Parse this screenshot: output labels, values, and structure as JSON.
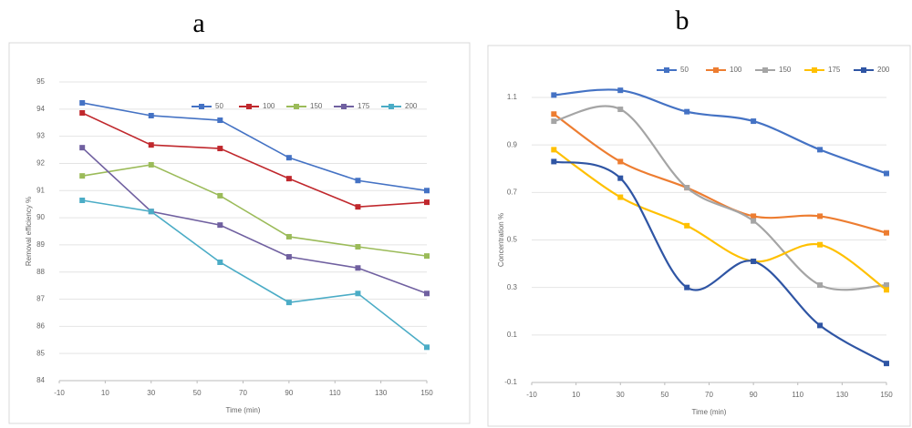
{
  "chart_data": [
    {
      "type": "line",
      "title": "a",
      "x_label": "Time (min)",
      "y_label": "Removal efficiency %",
      "x": [
        0,
        30,
        60,
        90,
        120,
        150
      ],
      "xlim": [
        -10,
        150
      ],
      "xticks": [
        -10,
        10,
        30,
        50,
        70,
        90,
        110,
        130,
        150
      ],
      "ylim": [
        84,
        95
      ],
      "yticks": [
        84,
        85,
        86,
        87,
        88,
        89,
        90,
        91,
        92,
        93,
        94,
        95
      ],
      "smooth": false,
      "series": [
        {
          "name": "50",
          "color": "#4472c4",
          "values": [
            94.23,
            93.76,
            93.59,
            92.21,
            91.37,
            91.0
          ]
        },
        {
          "name": "100",
          "color": "#c0282d",
          "values": [
            93.86,
            92.68,
            92.55,
            91.44,
            90.4,
            90.57
          ]
        },
        {
          "name": "150",
          "color": "#9bbb59",
          "values": [
            91.54,
            91.95,
            90.81,
            89.3,
            88.93,
            88.59
          ]
        },
        {
          "name": "175",
          "color": "#7060a0",
          "values": [
            92.58,
            90.23,
            89.73,
            88.56,
            88.15,
            87.21
          ]
        },
        {
          "name": "200",
          "color": "#4bacc6",
          "values": [
            90.64,
            90.23,
            88.36,
            86.88,
            87.21,
            85.23
          ]
        }
      ]
    },
    {
      "type": "line",
      "title": "b",
      "x_label": "Time (min)",
      "y_label": "Concentration %",
      "x": [
        0,
        30,
        60,
        90,
        120,
        150
      ],
      "xlim": [
        -10,
        150
      ],
      "xticks": [
        -10,
        10,
        30,
        50,
        70,
        90,
        110,
        130,
        150
      ],
      "ylim": [
        -0.1,
        1.1
      ],
      "yticks": [
        -0.1,
        0.1,
        0.3,
        0.5,
        0.7,
        0.9,
        1.1
      ],
      "smooth": true,
      "series": [
        {
          "name": "50",
          "color": "#4472c4",
          "values": [
            1.11,
            1.13,
            1.04,
            1.0,
            0.88,
            0.78
          ]
        },
        {
          "name": "100",
          "color": "#ed7d31",
          "values": [
            1.03,
            0.83,
            0.72,
            0.6,
            0.6,
            0.53
          ]
        },
        {
          "name": "150",
          "color": "#a5a5a5",
          "values": [
            1.0,
            1.05,
            0.72,
            0.58,
            0.31,
            0.31
          ]
        },
        {
          "name": "175",
          "color": "#ffc000",
          "values": [
            0.88,
            0.68,
            0.56,
            0.41,
            0.48,
            0.29
          ]
        },
        {
          "name": "200",
          "color": "#2f55a4",
          "values": [
            0.83,
            0.76,
            0.3,
            0.41,
            0.14,
            -0.02
          ]
        }
      ]
    }
  ]
}
